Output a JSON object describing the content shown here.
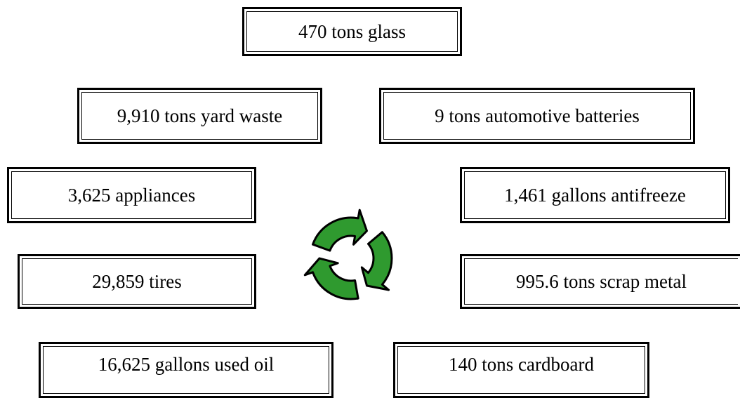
{
  "items": [
    {
      "label": "470 tons glass"
    },
    {
      "label": "9,910 tons yard waste"
    },
    {
      "label": "9 tons automotive batteries"
    },
    {
      "label": "3,625 appliances"
    },
    {
      "label": "1,461 gallons antifreeze"
    },
    {
      "label": "29,859 tires"
    },
    {
      "label": "995.6 tons scrap metal"
    },
    {
      "label": "16,625 gallons used oil"
    },
    {
      "label": "140 tons cardboard"
    }
  ]
}
